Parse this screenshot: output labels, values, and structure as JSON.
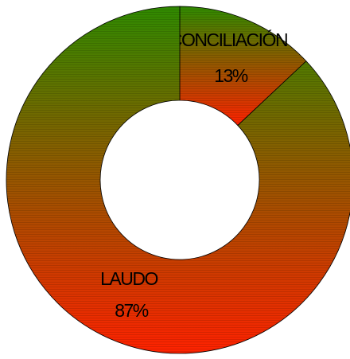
{
  "chart_data": {
    "type": "donut",
    "categories": [
      "CONCILIACIÓN",
      "LAUDO"
    ],
    "values": [
      13,
      87
    ],
    "value_labels": [
      "13%",
      "87%"
    ],
    "gradient": [
      "#2f8a00",
      "#ff2200"
    ]
  }
}
